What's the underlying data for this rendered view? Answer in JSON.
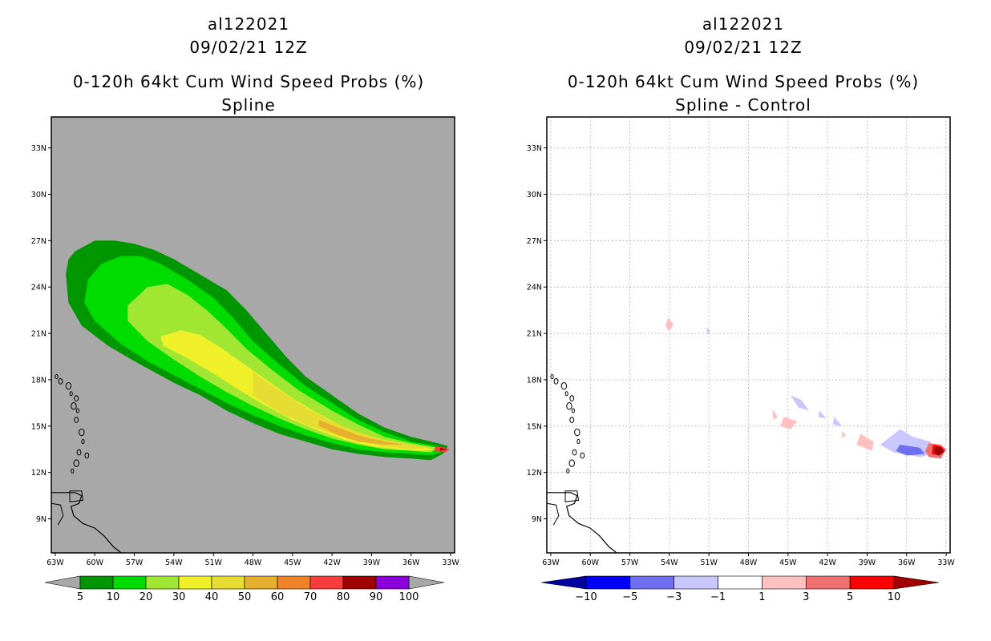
{
  "left": {
    "storm_id": "al122021",
    "datetime": "09/02/21 12Z",
    "product": "0-120h 64kt Cum Wind Speed Probs (%)",
    "subtitle": "Spline",
    "colorbar_labels": [
      "5",
      "10",
      "20",
      "30",
      "40",
      "50",
      "60",
      "70",
      "80",
      "90",
      "100"
    ],
    "colorbar_colors": [
      "#009600",
      "#00dc00",
      "#a0e632",
      "#f0f028",
      "#e6dc32",
      "#e6af2d",
      "#f08228",
      "#fa3c3c",
      "#a00000",
      "#8c00dc"
    ],
    "background_color": "#a8a8a8"
  },
  "right": {
    "storm_id": "al122021",
    "datetime": "09/02/21 12Z",
    "product": "0-120h 64kt Cum Wind Speed Probs (%)",
    "subtitle": "Spline - Control",
    "colorbar_labels": [
      "−10",
      "−5",
      "−3",
      "−1",
      "1",
      "3",
      "5",
      "10"
    ],
    "colorbar_colors": [
      "#0000a0",
      "#0000ff",
      "#6e6ef0",
      "#c8c8ff",
      "#ffffff",
      "#ffc0c0",
      "#f07070",
      "#ff0000",
      "#a00000"
    ]
  },
  "axes": {
    "lon_labels": [
      "63W",
      "60W",
      "57W",
      "54W",
      "51W",
      "48W",
      "45W",
      "42W",
      "39W",
      "36W",
      "33W"
    ],
    "lat_labels": [
      "33N",
      "30N",
      "27N",
      "24N",
      "21N",
      "18N",
      "15N",
      "12N",
      "9N"
    ],
    "lon_values": [
      -63,
      -60,
      -57,
      -54,
      -51,
      -48,
      -45,
      -42,
      -39,
      -36,
      -33
    ],
    "lat_values": [
      33,
      30,
      27,
      24,
      21,
      18,
      15,
      12,
      9
    ],
    "lon_range": [
      -63.3,
      -32.7
    ],
    "lat_range": [
      6.8,
      35.0
    ]
  },
  "swath_contours": [
    {
      "level": "5",
      "color": "#009600",
      "points": [
        [
          -62.0,
          25.8
        ],
        [
          -61.5,
          26.3
        ],
        [
          -60.0,
          27.0
        ],
        [
          -58.5,
          27.0
        ],
        [
          -57.0,
          26.8
        ],
        [
          -55.5,
          26.4
        ],
        [
          -54.0,
          25.8
        ],
        [
          -52.0,
          24.8
        ],
        [
          -50.0,
          23.8
        ],
        [
          -48.5,
          22.5
        ],
        [
          -47.0,
          21.0
        ],
        [
          -45.5,
          19.5
        ],
        [
          -44.0,
          18.2
        ],
        [
          -42.0,
          17.0
        ],
        [
          -40.0,
          15.8
        ],
        [
          -38.0,
          14.9
        ],
        [
          -36.0,
          14.3
        ],
        [
          -34.0,
          13.9
        ],
        [
          -33.2,
          13.7
        ],
        [
          -33.6,
          13.2
        ],
        [
          -34.5,
          12.8
        ],
        [
          -36.0,
          12.9
        ],
        [
          -38.0,
          13.0
        ],
        [
          -40.0,
          13.2
        ],
        [
          -42.0,
          13.5
        ],
        [
          -44.0,
          14.0
        ],
        [
          -46.0,
          14.5
        ],
        [
          -48.0,
          15.2
        ],
        [
          -50.0,
          16.0
        ],
        [
          -52.0,
          17.0
        ],
        [
          -54.0,
          17.8
        ],
        [
          -55.5,
          18.5
        ],
        [
          -57.0,
          19.2
        ],
        [
          -59.0,
          20.2
        ],
        [
          -61.0,
          21.5
        ],
        [
          -62.0,
          23.0
        ],
        [
          -62.2,
          24.8
        ]
      ]
    },
    {
      "level": "10",
      "color": "#00dc00",
      "points": [
        [
          -60.5,
          24.5
        ],
        [
          -59.5,
          25.5
        ],
        [
          -58.0,
          26.0
        ],
        [
          -56.5,
          26.0
        ],
        [
          -55.0,
          25.5
        ],
        [
          -53.0,
          24.5
        ],
        [
          -51.0,
          23.3
        ],
        [
          -49.5,
          22.0
        ],
        [
          -48.0,
          20.5
        ],
        [
          -46.0,
          19.0
        ],
        [
          -44.0,
          17.6
        ],
        [
          -42.0,
          16.5
        ],
        [
          -40.0,
          15.4
        ],
        [
          -38.0,
          14.6
        ],
        [
          -36.0,
          14.0
        ],
        [
          -34.0,
          13.7
        ],
        [
          -33.5,
          13.4
        ],
        [
          -34.5,
          13.1
        ],
        [
          -36.0,
          13.2
        ],
        [
          -38.0,
          13.3
        ],
        [
          -40.0,
          13.5
        ],
        [
          -42.0,
          13.9
        ],
        [
          -44.0,
          14.4
        ],
        [
          -46.0,
          15.0
        ],
        [
          -48.0,
          15.7
        ],
        [
          -50.0,
          16.5
        ],
        [
          -52.0,
          17.4
        ],
        [
          -54.0,
          18.3
        ],
        [
          -56.0,
          19.2
        ],
        [
          -58.0,
          20.3
        ],
        [
          -60.0,
          21.8
        ],
        [
          -60.8,
          23.0
        ]
      ]
    },
    {
      "level": "20",
      "color": "#a0e632",
      "points": [
        [
          -57.5,
          22.8
        ],
        [
          -56.0,
          24.0
        ],
        [
          -54.5,
          24.2
        ],
        [
          -53.0,
          23.5
        ],
        [
          -51.5,
          22.5
        ],
        [
          -50.0,
          21.3
        ],
        [
          -48.5,
          20.0
        ],
        [
          -46.5,
          18.6
        ],
        [
          -44.5,
          17.3
        ],
        [
          -42.0,
          16.0
        ],
        [
          -40.0,
          15.1
        ],
        [
          -38.0,
          14.3
        ],
        [
          -36.0,
          13.9
        ],
        [
          -34.0,
          13.6
        ],
        [
          -34.5,
          13.3
        ],
        [
          -36.0,
          13.4
        ],
        [
          -38.0,
          13.5
        ],
        [
          -40.0,
          13.8
        ],
        [
          -42.0,
          14.2
        ],
        [
          -44.0,
          14.8
        ],
        [
          -46.0,
          15.5
        ],
        [
          -48.0,
          16.3
        ],
        [
          -50.0,
          17.2
        ],
        [
          -52.0,
          18.2
        ],
        [
          -54.0,
          19.3
        ],
        [
          -56.0,
          20.5
        ],
        [
          -57.5,
          21.8
        ]
      ]
    },
    {
      "level": "30",
      "color": "#f0f028",
      "points": [
        [
          -55.0,
          20.8
        ],
        [
          -53.5,
          21.2
        ],
        [
          -52.0,
          20.9
        ],
        [
          -50.5,
          20.1
        ],
        [
          -49.0,
          19.2
        ],
        [
          -47.0,
          18.0
        ],
        [
          -45.0,
          16.8
        ],
        [
          -43.0,
          15.8
        ],
        [
          -41.0,
          14.9
        ],
        [
          -39.0,
          14.3
        ],
        [
          -37.0,
          13.9
        ],
        [
          -35.0,
          13.6
        ],
        [
          -34.2,
          13.5
        ],
        [
          -35.0,
          13.4
        ],
        [
          -37.0,
          13.5
        ],
        [
          -39.0,
          13.7
        ],
        [
          -41.0,
          14.1
        ],
        [
          -43.0,
          14.7
        ],
        [
          -45.0,
          15.4
        ],
        [
          -47.0,
          16.3
        ],
        [
          -49.0,
          17.3
        ],
        [
          -51.0,
          18.4
        ],
        [
          -53.0,
          19.4
        ],
        [
          -54.8,
          20.2
        ]
      ]
    },
    {
      "level": "40",
      "color": "#e6dc32",
      "points": [
        [
          -48.0,
          18.5
        ],
        [
          -46.0,
          17.3
        ],
        [
          -44.0,
          16.2
        ],
        [
          -42.0,
          15.3
        ],
        [
          -40.0,
          14.6
        ],
        [
          -38.0,
          14.1
        ],
        [
          -36.0,
          13.8
        ],
        [
          -34.5,
          13.6
        ],
        [
          -36.0,
          13.5
        ],
        [
          -38.0,
          13.7
        ],
        [
          -40.0,
          14.0
        ],
        [
          -42.0,
          14.5
        ],
        [
          -44.0,
          15.1
        ],
        [
          -46.0,
          15.9
        ],
        [
          -48.0,
          17.0
        ]
      ]
    },
    {
      "level": "50",
      "color": "#e6af2d",
      "points": [
        [
          -43.0,
          15.4
        ],
        [
          -41.5,
          14.9
        ],
        [
          -40.0,
          14.4
        ],
        [
          -38.0,
          14.0
        ],
        [
          -36.5,
          13.8
        ],
        [
          -38.0,
          13.8
        ],
        [
          -40.0,
          14.0
        ],
        [
          -41.5,
          14.4
        ],
        [
          -43.0,
          15.0
        ]
      ]
    },
    {
      "level": "70",
      "color": "#fa3c3c",
      "points": [
        [
          -34.2,
          13.7
        ],
        [
          -33.4,
          13.6
        ],
        [
          -33.1,
          13.5
        ],
        [
          -33.4,
          13.3
        ],
        [
          -34.2,
          13.4
        ]
      ]
    },
    {
      "level": "80",
      "color": "#a00000",
      "points": [
        [
          -33.8,
          13.6
        ],
        [
          -33.3,
          13.5
        ],
        [
          -33.8,
          13.4
        ]
      ]
    }
  ],
  "difference_blobs": [
    {
      "color": "#c8c8ff",
      "points": [
        [
          -36.5,
          14.8
        ],
        [
          -35.5,
          14.3
        ],
        [
          -34.2,
          14.0
        ],
        [
          -34.0,
          13.2
        ],
        [
          -35.0,
          13.0
        ],
        [
          -37.0,
          13.3
        ],
        [
          -38.0,
          13.8
        ]
      ]
    },
    {
      "color": "#6e6ef0",
      "points": [
        [
          -36.5,
          13.8
        ],
        [
          -35.0,
          13.6
        ],
        [
          -34.6,
          13.2
        ],
        [
          -36.0,
          13.1
        ],
        [
          -36.8,
          13.4
        ]
      ]
    },
    {
      "color": "#c8c8ff",
      "points": [
        [
          -44.8,
          17.0
        ],
        [
          -44.0,
          16.7
        ],
        [
          -43.4,
          16.0
        ],
        [
          -44.2,
          16.2
        ]
      ]
    },
    {
      "color": "#c8c8ff",
      "points": [
        [
          -41.5,
          15.6
        ],
        [
          -40.9,
          15.0
        ],
        [
          -41.6,
          15.1
        ]
      ]
    },
    {
      "color": "#c8c8ff",
      "points": [
        [
          -42.6,
          16.0
        ],
        [
          -42.1,
          15.5
        ],
        [
          -42.7,
          15.6
        ]
      ]
    },
    {
      "color": "#ffc0c0",
      "points": [
        [
          -39.5,
          14.5
        ],
        [
          -38.5,
          14.0
        ],
        [
          -38.6,
          13.4
        ],
        [
          -39.8,
          13.8
        ]
      ]
    },
    {
      "color": "#ffc0c0",
      "points": [
        [
          -45.3,
          15.6
        ],
        [
          -44.3,
          15.3
        ],
        [
          -44.8,
          14.8
        ],
        [
          -45.6,
          15.0
        ]
      ]
    },
    {
      "color": "#ffc0c0",
      "points": [
        [
          -46.2,
          16.1
        ],
        [
          -45.8,
          15.6
        ],
        [
          -46.1,
          15.4
        ]
      ]
    },
    {
      "color": "#ffc0c0",
      "points": [
        [
          -54.1,
          22.0
        ],
        [
          -53.7,
          21.6
        ],
        [
          -54.0,
          21.1
        ],
        [
          -54.3,
          21.5
        ]
      ]
    },
    {
      "color": "#ffc0c0",
      "points": [
        [
          -40.9,
          14.7
        ],
        [
          -40.6,
          14.4
        ],
        [
          -40.9,
          14.2
        ]
      ]
    },
    {
      "color": "#c8c8ff",
      "points": [
        [
          -51.2,
          21.4
        ],
        [
          -50.9,
          21.2
        ],
        [
          -51.1,
          20.9
        ]
      ]
    },
    {
      "color": "#f07070",
      "points": [
        [
          -34.3,
          13.9
        ],
        [
          -33.4,
          13.8
        ],
        [
          -33.0,
          13.5
        ],
        [
          -33.4,
          12.9
        ],
        [
          -34.3,
          13.0
        ],
        [
          -34.6,
          13.4
        ]
      ]
    },
    {
      "color": "#ff0000",
      "points": [
        [
          -34.0,
          13.8
        ],
        [
          -33.4,
          13.7
        ],
        [
          -33.1,
          13.4
        ],
        [
          -33.5,
          13.1
        ],
        [
          -34.1,
          13.2
        ]
      ]
    },
    {
      "color": "#a00000",
      "points": [
        [
          -33.8,
          13.7
        ],
        [
          -33.3,
          13.6
        ],
        [
          -33.2,
          13.3
        ],
        [
          -33.6,
          13.1
        ],
        [
          -33.9,
          13.3
        ]
      ]
    }
  ]
}
